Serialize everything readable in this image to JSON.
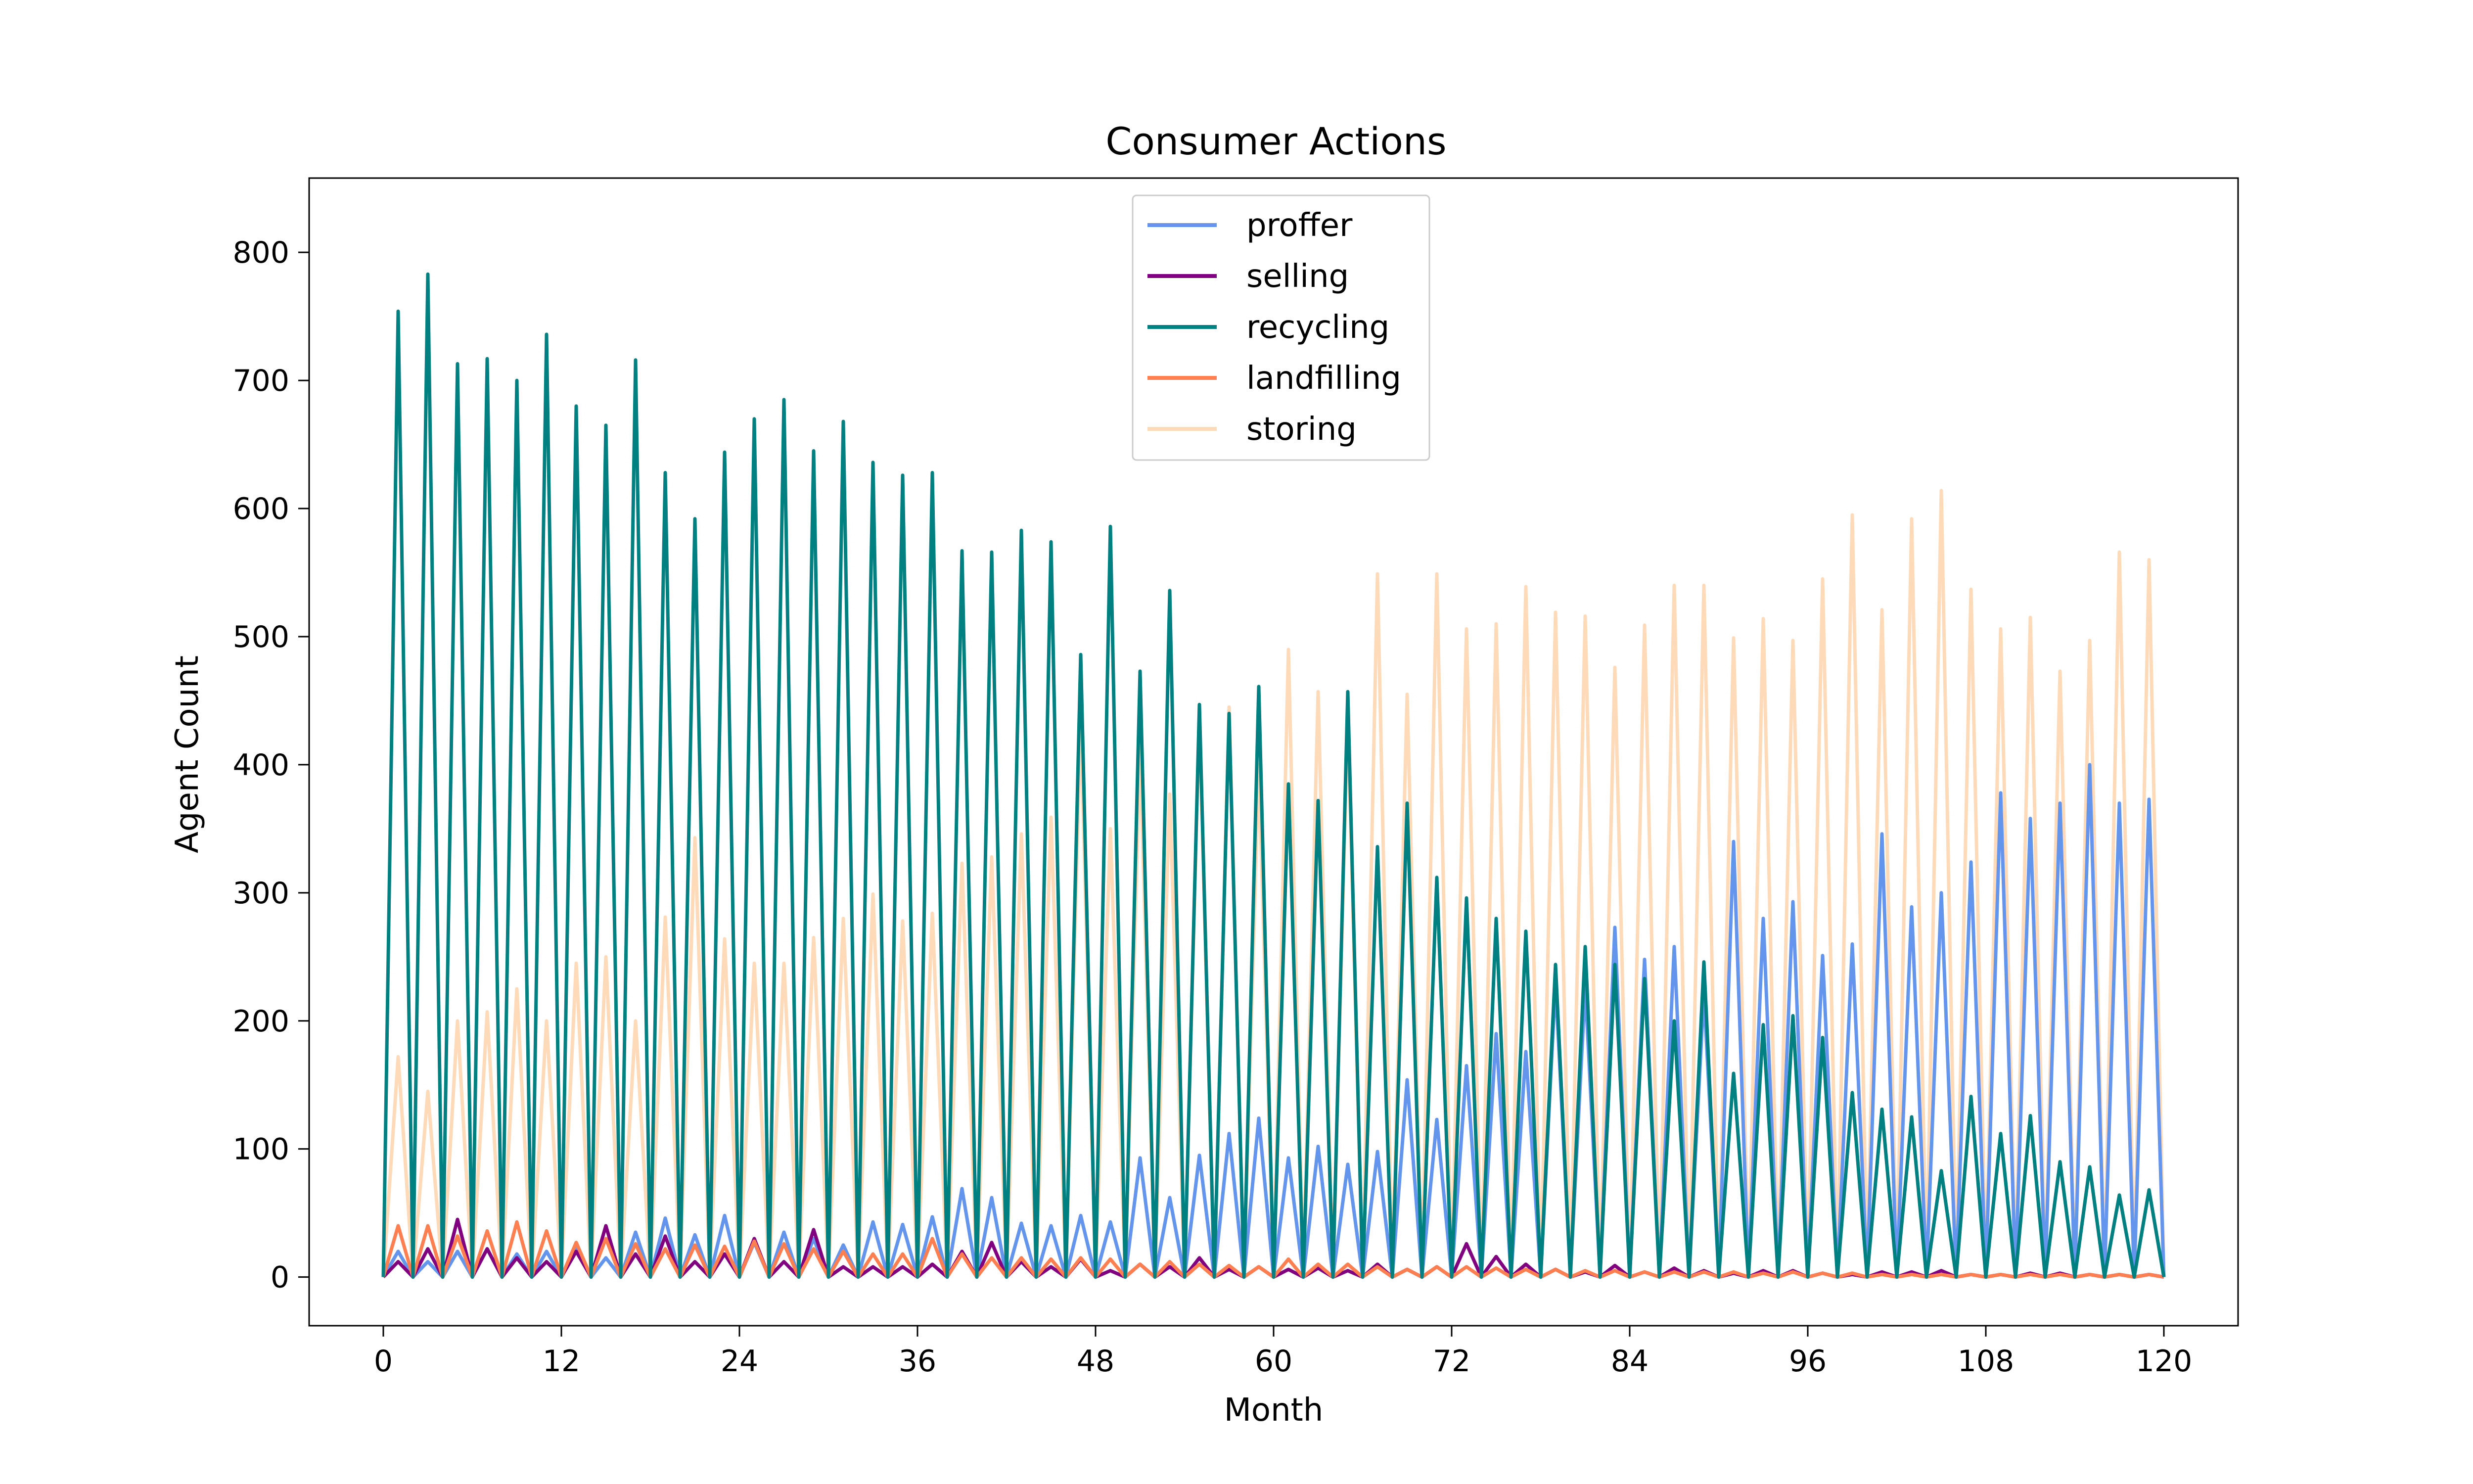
{
  "chart_data": {
    "type": "line",
    "title": "Consumer Actions",
    "xlabel": "Month",
    "ylabel": "Agent Count",
    "xlim": [
      -5,
      125
    ],
    "ylim": [
      -38,
      858
    ],
    "xticks": [
      0,
      12,
      24,
      36,
      48,
      60,
      72,
      84,
      96,
      108,
      120
    ],
    "yticks": [
      0,
      100,
      200,
      300,
      400,
      500,
      600,
      700,
      800
    ],
    "grid": false,
    "legend_position": "top-center",
    "x_peaks": [
      1,
      3,
      5,
      7,
      9,
      11,
      13,
      15,
      17,
      19,
      21,
      23,
      25,
      27,
      29,
      31,
      33,
      35,
      37,
      39,
      41,
      43,
      45,
      47,
      49,
      51,
      53,
      55,
      57,
      59,
      61,
      63,
      65,
      67,
      69,
      71,
      73,
      75,
      77,
      79,
      81,
      83,
      85,
      87,
      89,
      91,
      93,
      95,
      97,
      99,
      101,
      103,
      105,
      107,
      109,
      111,
      113,
      115,
      117,
      119
    ],
    "note_x": "Series values listed at odd months (peaks); even months 0-120 are 0.",
    "series": [
      {
        "name": "proffer",
        "color": "#6495ED",
        "values": [
          20,
          12,
          20,
          22,
          18,
          20,
          25,
          15,
          35,
          46,
          33,
          48,
          27,
          35,
          30,
          25,
          43,
          41,
          47,
          69,
          62,
          42,
          40,
          48,
          43,
          93,
          62,
          95,
          112,
          124,
          93,
          102,
          88,
          98,
          154,
          123,
          165,
          190,
          176,
          230,
          227,
          273,
          248,
          258,
          222,
          340,
          280,
          293,
          251,
          260,
          346,
          289,
          300,
          324,
          378,
          358,
          370,
          400,
          370,
          373
        ]
      },
      {
        "name": "selling",
        "color": "#800080",
        "values": [
          12,
          22,
          45,
          22,
          15,
          12,
          20,
          40,
          18,
          32,
          12,
          18,
          30,
          12,
          37,
          8,
          8,
          8,
          10,
          20,
          27,
          12,
          8,
          14,
          5,
          10,
          8,
          15,
          6,
          8,
          6,
          7,
          5,
          10,
          6,
          8,
          26,
          16,
          10,
          6,
          4,
          9,
          4,
          7,
          5,
          3,
          5,
          5,
          3,
          2,
          4,
          4,
          5,
          2,
          2,
          3,
          3,
          2,
          2,
          2
        ]
      },
      {
        "name": "recycling",
        "color": "#008080",
        "values": [
          754,
          783,
          713,
          717,
          700,
          736,
          680,
          665,
          716,
          628,
          592,
          644,
          670,
          685,
          645,
          668,
          636,
          626,
          628,
          567,
          566,
          583,
          574,
          486,
          586,
          473,
          536,
          447,
          440,
          461,
          385,
          372,
          457,
          336,
          370,
          312,
          296,
          280,
          270,
          244,
          258,
          244,
          233,
          200,
          246,
          159,
          197,
          204,
          187,
          144,
          131,
          125,
          83,
          141,
          112,
          126,
          90,
          86,
          64,
          68
        ]
      },
      {
        "name": "landfilling",
        "color": "#FF7F50",
        "values": [
          40,
          40,
          32,
          36,
          43,
          36,
          27,
          30,
          26,
          22,
          25,
          24,
          28,
          26,
          22,
          20,
          18,
          18,
          30,
          18,
          15,
          15,
          14,
          15,
          14,
          10,
          12,
          10,
          9,
          8,
          14,
          10,
          10,
          8,
          6,
          8,
          8,
          7,
          6,
          6,
          5,
          5,
          4,
          4,
          4,
          4,
          3,
          4,
          3,
          3,
          2,
          2,
          2,
          2,
          2,
          2,
          2,
          2,
          2,
          2
        ]
      },
      {
        "name": "storing",
        "color": "#FFDAB9",
        "values": [
          172,
          145,
          200,
          207,
          225,
          200,
          245,
          250,
          200,
          281,
          343,
          264,
          245,
          245,
          265,
          280,
          299,
          278,
          284,
          323,
          328,
          346,
          359,
          437,
          350,
          413,
          377,
          437,
          445,
          400,
          490,
          457,
          440,
          549,
          455,
          549,
          506,
          510,
          539,
          519,
          516,
          476,
          509,
          540,
          540,
          499,
          514,
          497,
          545,
          595,
          521,
          592,
          614,
          537,
          506,
          515,
          473,
          497,
          566,
          560
        ]
      }
    ]
  }
}
